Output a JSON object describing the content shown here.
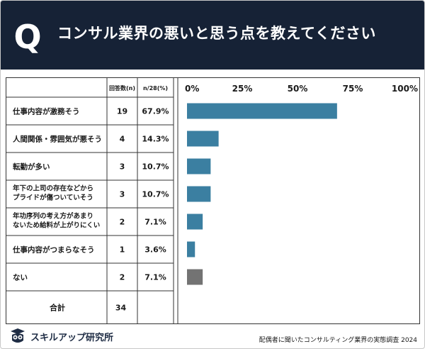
{
  "header": {
    "q_letter": "Q",
    "question": "コンサル業界の悪いと思う点を教えてください"
  },
  "table": {
    "col_answers": "回答数(n)",
    "col_ratio": "n/28(%)",
    "total_label": "合計",
    "total_count": "34"
  },
  "chart_data": {
    "type": "bar",
    "orientation": "horizontal",
    "categories": [
      [
        "仕事内容が激務そう"
      ],
      [
        "人間関係・雰囲気が悪そう"
      ],
      [
        "転勤が多い"
      ],
      [
        "年下の上司の存在などから",
        "プライドが傷ついていそう"
      ],
      [
        "年功序列の考え方があまり",
        "ないため給料が上がりにくい"
      ],
      [
        "仕事内容がつまらなそう"
      ],
      [
        "ない"
      ]
    ],
    "counts": [
      "19",
      "4",
      "3",
      "3",
      "2",
      "1",
      "2"
    ],
    "percent_labels": [
      "67.9%",
      "14.3%",
      "10.7%",
      "10.7%",
      "7.1%",
      "3.6%",
      "7.1%"
    ],
    "values": [
      67.9,
      14.3,
      10.7,
      10.7,
      7.1,
      3.6,
      7.1
    ],
    "x_ticks": [
      "0%",
      "25%",
      "50%",
      "75%",
      "100%"
    ],
    "xlim": [
      0,
      100
    ],
    "bar_colors": [
      "#3b7fa1",
      "#3b7fa1",
      "#3b7fa1",
      "#3b7fa1",
      "#3b7fa1",
      "#3b7fa1",
      "#737373"
    ]
  },
  "footer": {
    "brand": "スキルアップ研究所",
    "note": "配偶者に聞いたコンサルティング業界の実態調査 2024"
  },
  "colors": {
    "header_bg": "#162236",
    "bar": "#3b7fa1",
    "bar_none": "#737373"
  }
}
